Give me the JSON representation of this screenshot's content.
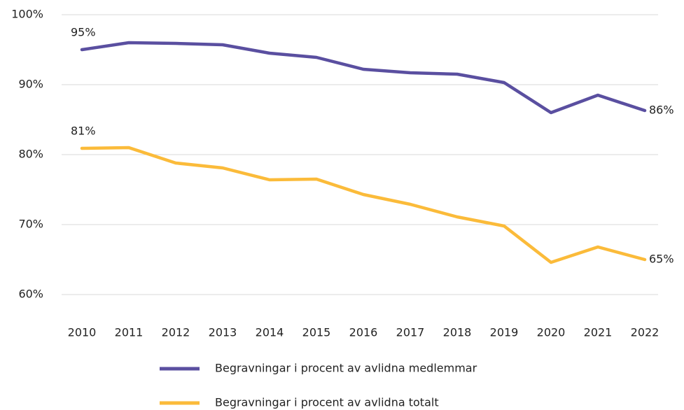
{
  "chart_data": {
    "type": "line",
    "categories": [
      "2010",
      "2011",
      "2012",
      "2013",
      "2014",
      "2015",
      "2016",
      "2017",
      "2018",
      "2019",
      "2020",
      "2021",
      "2022"
    ],
    "series": [
      {
        "name": "Begravningar i procent av avlidna medlemmar",
        "color": "#5a4fa0",
        "values": [
          95.0,
          96.0,
          95.9,
          95.7,
          94.5,
          93.9,
          92.2,
          91.7,
          91.5,
          90.3,
          86.0,
          88.5,
          86.3
        ],
        "value_labels": [
          "95%",
          null,
          null,
          null,
          null,
          null,
          null,
          null,
          null,
          null,
          null,
          null,
          "86%"
        ]
      },
      {
        "name": "Begravningar i procent av avlidna totalt",
        "color": "#fbbb3a",
        "values": [
          80.9,
          81.0,
          78.8,
          78.1,
          76.4,
          76.5,
          74.3,
          72.9,
          71.1,
          69.8,
          64.6,
          66.8,
          65.0
        ],
        "value_labels": [
          "81%",
          null,
          null,
          null,
          null,
          null,
          null,
          null,
          null,
          null,
          null,
          null,
          "65%"
        ]
      }
    ],
    "ylim": [
      60,
      100
    ],
    "yticks": [
      {
        "value": 60,
        "label": "60%"
      },
      {
        "value": 70,
        "label": "70%"
      },
      {
        "value": 80,
        "label": "80%"
      },
      {
        "value": 90,
        "label": "90%"
      },
      {
        "value": 100,
        "label": "100%"
      }
    ],
    "grid": true
  }
}
